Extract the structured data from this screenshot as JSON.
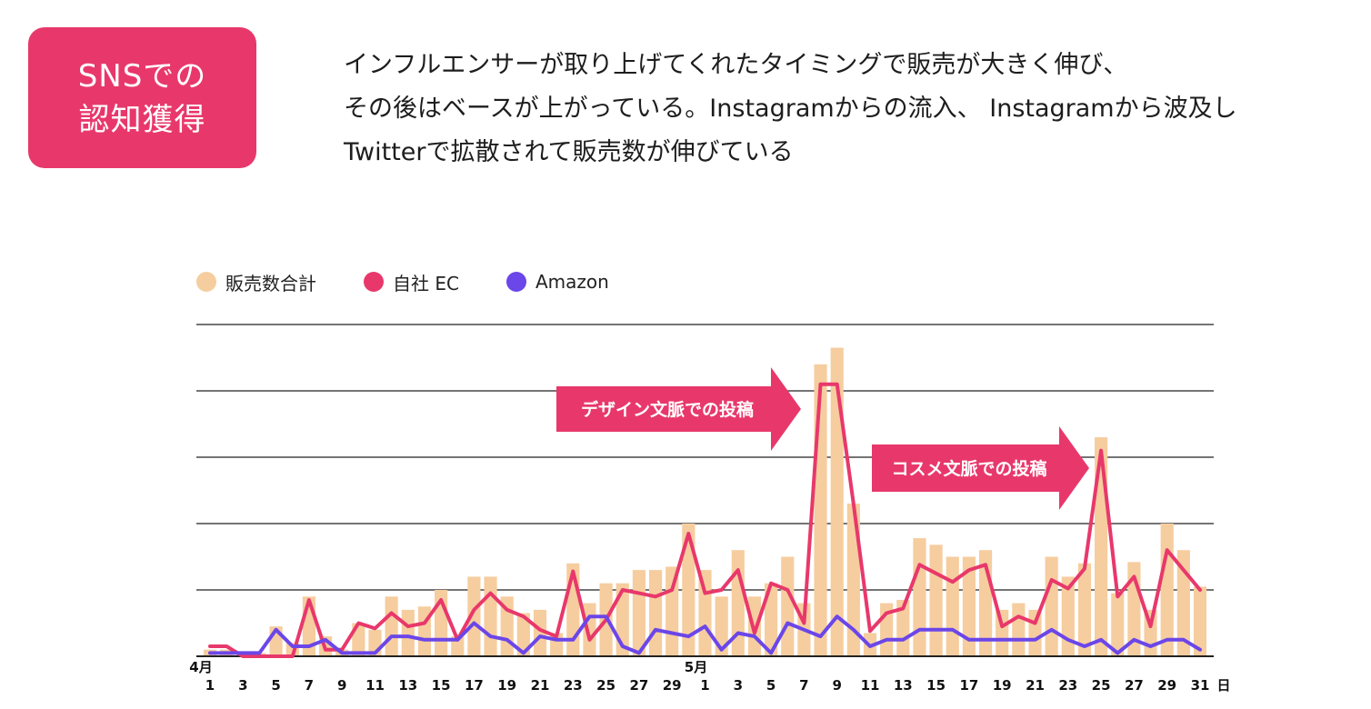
{
  "badge": {
    "line1": "SNSでの",
    "line2": "認知獲得"
  },
  "headline": {
    "line1": "インフルエンサーが取り上げてくれたタイミングで販売が大きく伸び、",
    "line2": "その後はベースが上がっている。Instagramからの流入、 Instagramから波及し",
    "line3": "Twitterで拡散されて販売数が伸びている"
  },
  "colors": {
    "accent": "#e8386b",
    "bar": "#f6cd9f",
    "amazon": "#6b46e8"
  },
  "legend": [
    {
      "label": "販売数合計",
      "color": "#f6cd9f"
    },
    {
      "label": "自社 EC",
      "color": "#e8386b"
    },
    {
      "label": "Amazon",
      "color": "#6b46e8"
    }
  ],
  "chart_data": {
    "type": "bar",
    "title": "",
    "xlabel": "日",
    "ylabel": "",
    "ylim": [
      0,
      5
    ],
    "grid": true,
    "month_labels": [
      {
        "label": "4月",
        "index": 0
      },
      {
        "label": "5月",
        "index": 30
      }
    ],
    "x_tick_labels": [
      {
        "index": 0,
        "label": "1"
      },
      {
        "index": 2,
        "label": "3"
      },
      {
        "index": 4,
        "label": "5"
      },
      {
        "index": 6,
        "label": "7"
      },
      {
        "index": 8,
        "label": "9"
      },
      {
        "index": 10,
        "label": "11"
      },
      {
        "index": 12,
        "label": "13"
      },
      {
        "index": 14,
        "label": "15"
      },
      {
        "index": 16,
        "label": "17"
      },
      {
        "index": 18,
        "label": "19"
      },
      {
        "index": 20,
        "label": "21"
      },
      {
        "index": 22,
        "label": "23"
      },
      {
        "index": 24,
        "label": "25"
      },
      {
        "index": 26,
        "label": "27"
      },
      {
        "index": 28,
        "label": "29"
      },
      {
        "index": 30,
        "label": "1"
      },
      {
        "index": 32,
        "label": "3"
      },
      {
        "index": 34,
        "label": "5"
      },
      {
        "index": 36,
        "label": "7"
      },
      {
        "index": 38,
        "label": "9"
      },
      {
        "index": 40,
        "label": "11"
      },
      {
        "index": 42,
        "label": "13"
      },
      {
        "index": 44,
        "label": "15"
      },
      {
        "index": 46,
        "label": "17"
      },
      {
        "index": 48,
        "label": "19"
      },
      {
        "index": 50,
        "label": "21"
      },
      {
        "index": 52,
        "label": "23"
      },
      {
        "index": 54,
        "label": "25"
      },
      {
        "index": 56,
        "label": "27"
      },
      {
        "index": 58,
        "label": "29"
      },
      {
        "index": 60,
        "label": "31"
      }
    ],
    "series": [
      {
        "name": "販売数合計",
        "kind": "bar",
        "color": "#f6cd9f",
        "values": [
          0.1,
          0.1,
          0.05,
          0.05,
          0.45,
          0.2,
          0.9,
          0.3,
          0.1,
          0.5,
          0.4,
          0.9,
          0.7,
          0.75,
          1.0,
          0.3,
          1.2,
          1.2,
          0.9,
          0.65,
          0.7,
          0.35,
          1.4,
          0.8,
          1.1,
          1.1,
          1.3,
          1.3,
          1.35,
          2.0,
          1.3,
          0.9,
          1.6,
          0.9,
          1.1,
          1.5,
          0.8,
          4.4,
          4.65,
          2.3,
          0.35,
          0.8,
          0.85,
          1.78,
          1.68,
          1.5,
          1.5,
          1.6,
          0.7,
          0.8,
          0.7,
          1.5,
          1.2,
          1.4,
          3.3,
          0.95,
          1.42,
          0.7,
          2.0,
          1.6,
          1.05
        ]
      },
      {
        "name": "自社 EC",
        "kind": "line",
        "color": "#e8386b",
        "values": [
          0.15,
          0.15,
          0.0,
          0.0,
          0.0,
          0.0,
          0.85,
          0.1,
          0.1,
          0.5,
          0.42,
          0.65,
          0.45,
          0.5,
          0.85,
          0.25,
          0.7,
          0.95,
          0.7,
          0.6,
          0.4,
          0.3,
          1.28,
          0.25,
          0.55,
          1.0,
          0.95,
          0.9,
          1.0,
          1.85,
          0.95,
          1.0,
          1.3,
          0.35,
          1.1,
          1.0,
          0.5,
          4.1,
          4.1,
          2.3,
          0.38,
          0.65,
          0.72,
          1.38,
          1.25,
          1.12,
          1.3,
          1.38,
          0.45,
          0.6,
          0.5,
          1.15,
          1.02,
          1.32,
          3.1,
          0.9,
          1.2,
          0.45,
          1.6,
          1.3,
          1.0
        ]
      },
      {
        "name": "Amazon",
        "kind": "line",
        "color": "#6b46e8",
        "values": [
          0.05,
          0.05,
          0.05,
          0.05,
          0.4,
          0.15,
          0.15,
          0.25,
          0.05,
          0.05,
          0.05,
          0.3,
          0.3,
          0.25,
          0.25,
          0.25,
          0.5,
          0.3,
          0.25,
          0.05,
          0.3,
          0.25,
          0.25,
          0.6,
          0.6,
          0.15,
          0.05,
          0.4,
          0.35,
          0.3,
          0.45,
          0.1,
          0.35,
          0.3,
          0.05,
          0.5,
          0.4,
          0.3,
          0.6,
          0.4,
          0.15,
          0.25,
          0.25,
          0.4,
          0.4,
          0.4,
          0.25,
          0.25,
          0.25,
          0.25,
          0.25,
          0.4,
          0.25,
          0.15,
          0.25,
          0.05,
          0.25,
          0.15,
          0.25,
          0.25,
          0.1
        ]
      }
    ],
    "annotations": [
      {
        "text": "デザイン文脈での投稿",
        "points_to_index": 37
      },
      {
        "text": "コスメ文脈での投稿",
        "points_to_index": 53
      }
    ]
  }
}
